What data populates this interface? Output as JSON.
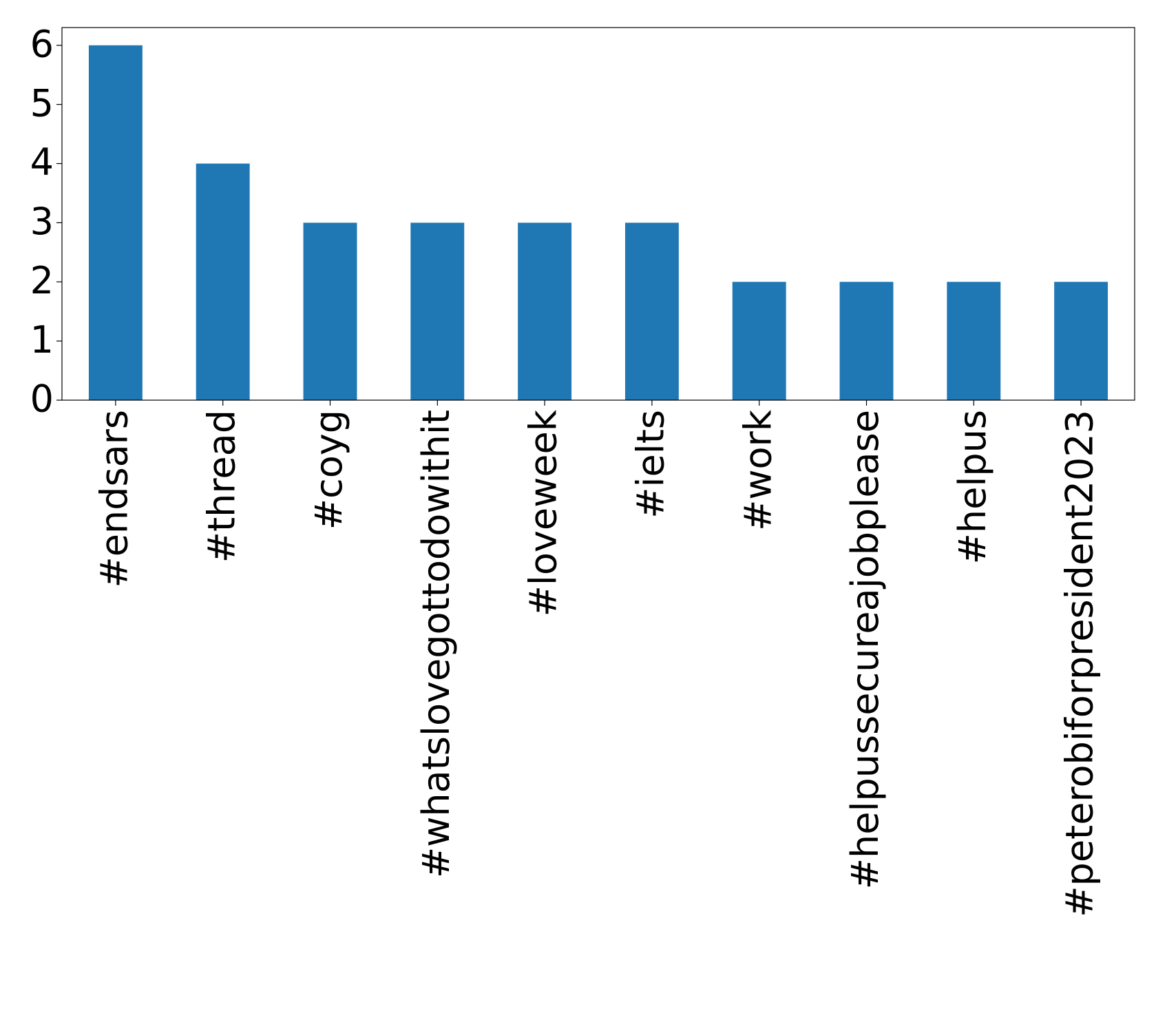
{
  "chart_data": {
    "type": "bar",
    "categories": [
      "#endsars",
      "#thread",
      "#coyg",
      "#whatslovegottodowithit",
      "#loveweek",
      "#ielts",
      "#work",
      "#helpussecureajobplease",
      "#helpus",
      "#peterobiforpresident2023"
    ],
    "values": [
      6,
      4,
      3,
      3,
      3,
      3,
      2,
      2,
      2,
      2
    ],
    "color": "#1f77b4",
    "ylim": [
      0,
      6.3
    ],
    "yticks": [
      0,
      1,
      2,
      3,
      4,
      5,
      6
    ],
    "grid": false
  }
}
